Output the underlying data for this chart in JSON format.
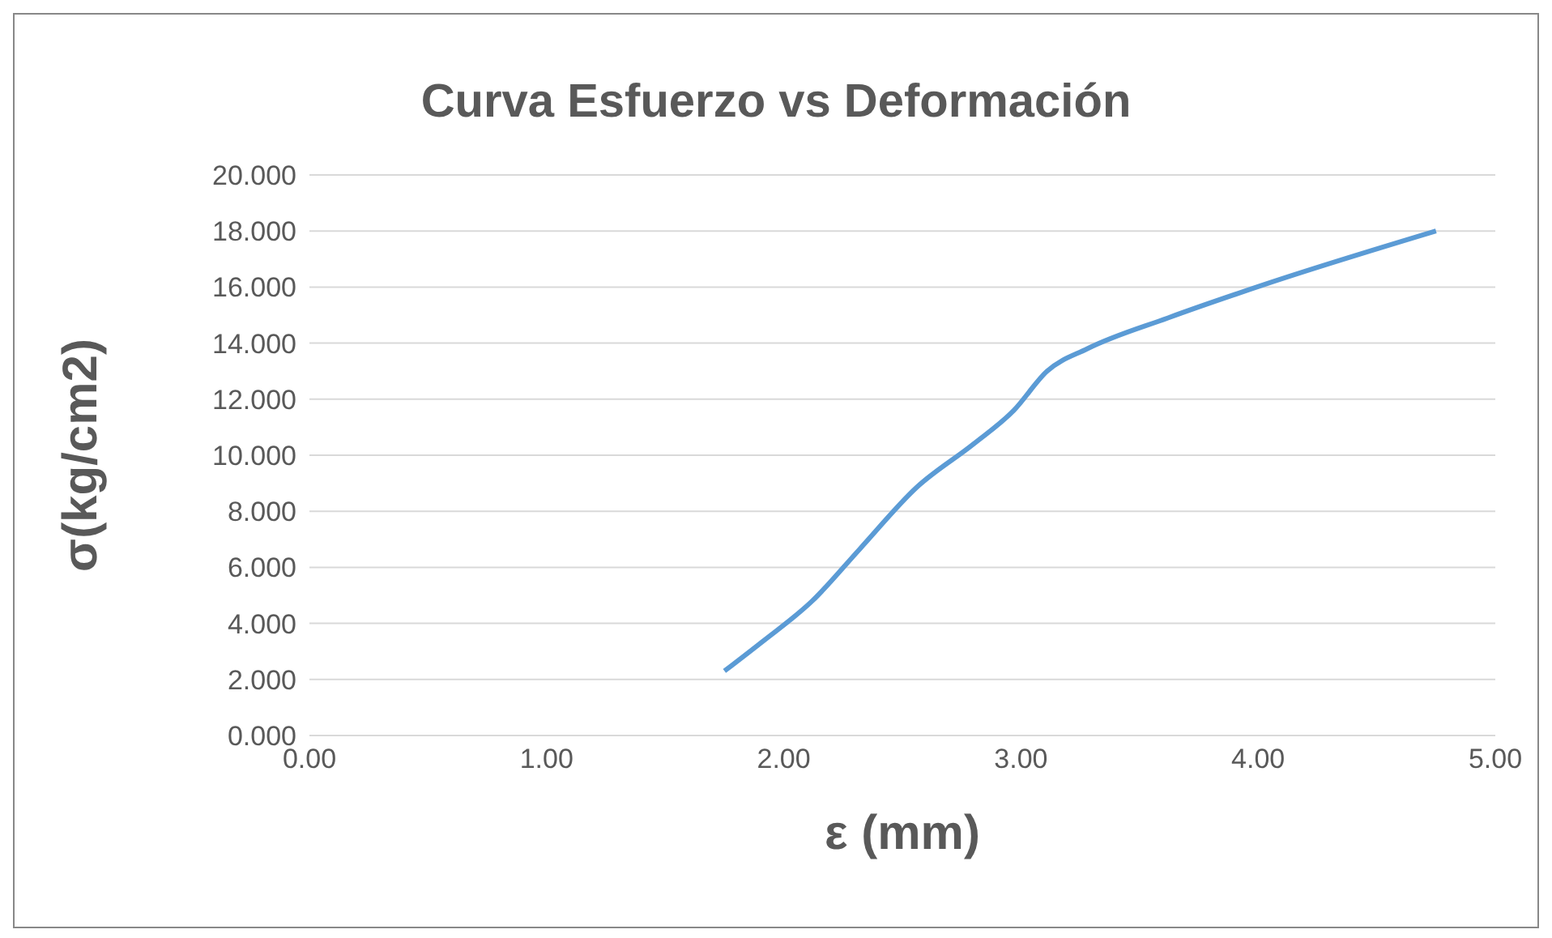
{
  "chart_data": {
    "type": "line",
    "title": "Curva Esfuerzo vs Deformación",
    "xlabel": "ε (mm)",
    "ylabel": "σ(kg/cm2)",
    "x": [
      1.75,
      1.91,
      2.12,
      2.32,
      2.56,
      2.8,
      2.97,
      3.11,
      3.28,
      3.62,
      4.03,
      4.75
    ],
    "series": [
      {
        "color": "#5b9bd5",
        "values": [
          2.3,
          3.35,
          4.8,
          6.65,
          8.85,
          10.4,
          11.6,
          13.0,
          13.8,
          14.9,
          16.1,
          18.0
        ]
      }
    ],
    "xlim": [
      0,
      5
    ],
    "xticks": [
      {
        "value": 0,
        "label": "0.00"
      },
      {
        "value": 1,
        "label": "1.00"
      },
      {
        "value": 2,
        "label": "2.00"
      },
      {
        "value": 3,
        "label": "3.00"
      },
      {
        "value": 4,
        "label": "4.00"
      },
      {
        "value": 5,
        "label": "5.00"
      }
    ],
    "ylim": [
      0,
      20
    ],
    "yticks": [
      {
        "value": 0,
        "label": "0.000"
      },
      {
        "value": 2,
        "label": "2.000"
      },
      {
        "value": 4,
        "label": "4.000"
      },
      {
        "value": 6,
        "label": "6.000"
      },
      {
        "value": 8,
        "label": "8.000"
      },
      {
        "value": 10,
        "label": "10.000"
      },
      {
        "value": 12,
        "label": "12.000"
      },
      {
        "value": 14,
        "label": "14.000"
      },
      {
        "value": 16,
        "label": "16.000"
      },
      {
        "value": 18,
        "label": "18.000"
      },
      {
        "value": 20,
        "label": "20.000"
      }
    ],
    "grid": "y",
    "marker": "none",
    "line_style": "solid"
  }
}
